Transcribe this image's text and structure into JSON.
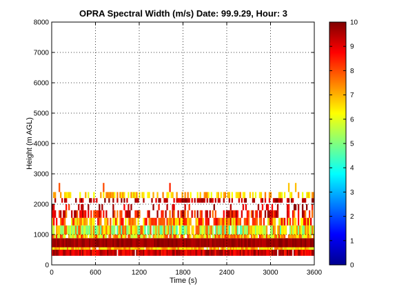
{
  "chart_data": {
    "type": "heatmap",
    "title": "OPRA Spectral Width (m/s)  Date: 99.9.29, Hour: 3",
    "xlabel": "Time (s)",
    "ylabel": "Height (m AGL)",
    "xlim": [
      0,
      3600
    ],
    "ylim": [
      0,
      8000
    ],
    "xticks": [
      "0",
      "600",
      "1200",
      "1800",
      "2400",
      "3000",
      "3600"
    ],
    "yticks": [
      "0",
      "1000",
      "2000",
      "3000",
      "4000",
      "5000",
      "6000",
      "7000",
      "8000"
    ],
    "grid": true,
    "colorbar": {
      "range": [
        0,
        10
      ],
      "ticks": [
        "0",
        "1",
        "2",
        "3",
        "4",
        "5",
        "6",
        "7",
        "8",
        "9",
        "10"
      ],
      "colormap": "jet"
    },
    "layers": [
      {
        "height_bottom": 300,
        "height_top": 500,
        "coverage": 0.98,
        "mean": 9.2,
        "spread": 0.8
      },
      {
        "height_bottom": 500,
        "height_top": 580,
        "coverage": 0.95,
        "mean": 6.8,
        "spread": 1.0
      },
      {
        "height_bottom": 580,
        "height_top": 880,
        "coverage": 1.0,
        "mean": 9.7,
        "spread": 0.3
      },
      {
        "height_bottom": 880,
        "height_top": 1000,
        "coverage": 0.9,
        "mean": 7.0,
        "spread": 1.5
      },
      {
        "height_bottom": 1000,
        "height_top": 1300,
        "coverage": 0.9,
        "mean": 6.2,
        "spread": 1.8
      },
      {
        "height_bottom": 1300,
        "height_top": 1550,
        "coverage": 0.75,
        "mean": 7.5,
        "spread": 1.6
      },
      {
        "height_bottom": 1550,
        "height_top": 1800,
        "coverage": 0.55,
        "mean": 8.6,
        "spread": 1.2
      },
      {
        "height_bottom": 1800,
        "height_top": 2000,
        "coverage": 0.2,
        "mean": 9.0,
        "spread": 1.0
      },
      {
        "height_bottom": 2050,
        "height_top": 2200,
        "coverage": 0.5,
        "mean": 9.4,
        "spread": 0.6
      },
      {
        "height_bottom": 2200,
        "height_top": 2400,
        "coverage": 0.45,
        "mean": 6.8,
        "spread": 0.8
      },
      {
        "height_bottom": 2400,
        "height_top": 2700,
        "coverage": 0.04,
        "mean": 7.5,
        "spread": 1.5
      }
    ]
  }
}
